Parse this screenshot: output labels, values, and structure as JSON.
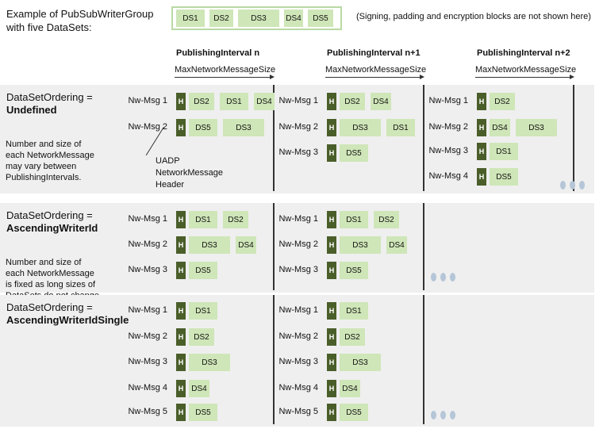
{
  "intro": {
    "line1": "Example of PubSubWriterGroup",
    "line2": "with five DataSets:"
  },
  "legend": {
    "datasets": [
      "DS1",
      "DS2",
      "DS3",
      "DS4",
      "DS5"
    ]
  },
  "note": "(Signing, padding and encryption blocks are not shown here)",
  "intervals": [
    {
      "title": "PublishingInterval n",
      "size_label": "MaxNetworkMessageSize"
    },
    {
      "title": "PublishingInterval n+1",
      "size_label": "MaxNetworkMessageSize"
    },
    {
      "title": "PublishingInterval n+2",
      "size_label": "MaxNetworkMessageSize"
    }
  ],
  "header_box_label": "H",
  "header_note": {
    "line1": "UADP",
    "line2": "NetworkMessage",
    "line3": "Header"
  },
  "sections": [
    {
      "label": "DataSetOrdering =",
      "value": "Undefined",
      "desc": [
        "Number  and size of",
        "each NetworkMessage",
        "may vary between",
        "PublishingIntervals."
      ],
      "intervals": [
        {
          "messages": [
            {
              "label": "Nw-Msg 1",
              "datasets": [
                "DS2",
                "DS1",
                "DS4"
              ]
            },
            {
              "label": "Nw-Msg 2",
              "datasets": [
                "DS5",
                "DS3"
              ]
            }
          ]
        },
        {
          "messages": [
            {
              "label": "Nw-Msg 1",
              "datasets": [
                "DS2",
                "DS4"
              ]
            },
            {
              "label": "Nw-Msg 2",
              "datasets": [
                "DS3",
                "DS1"
              ]
            },
            {
              "label": "Nw-Msg 3",
              "datasets": [
                "DS5"
              ]
            }
          ]
        },
        {
          "messages": [
            {
              "label": "Nw-Msg 1",
              "datasets": [
                "DS2"
              ]
            },
            {
              "label": "Nw-Msg 2",
              "datasets": [
                "DS4",
                "DS3"
              ]
            },
            {
              "label": "Nw-Msg 3",
              "datasets": [
                "DS1"
              ]
            },
            {
              "label": "Nw-Msg 4",
              "datasets": [
                "DS5"
              ]
            }
          ]
        }
      ]
    },
    {
      "label": "DataSetOrdering =",
      "value": "AscendingWriterId",
      "desc": [
        "Number  and size of",
        "each NetworkMessage",
        "is fixed as long sizes of",
        "DataSets do not change."
      ],
      "intervals": [
        {
          "messages": [
            {
              "label": "Nw-Msg 1",
              "datasets": [
                "DS1",
                "DS2"
              ]
            },
            {
              "label": "Nw-Msg 2",
              "datasets": [
                "DS3",
                "DS4"
              ]
            },
            {
              "label": "Nw-Msg 3",
              "datasets": [
                "DS5"
              ]
            }
          ]
        },
        {
          "messages": [
            {
              "label": "Nw-Msg 1",
              "datasets": [
                "DS1",
                "DS2"
              ]
            },
            {
              "label": "Nw-Msg 2",
              "datasets": [
                "DS3",
                "DS4"
              ]
            },
            {
              "label": "Nw-Msg 3",
              "datasets": [
                "DS5"
              ]
            }
          ]
        }
      ]
    },
    {
      "label": "DataSetOrdering =",
      "value": "AscendingWriterIdSingle",
      "desc": [],
      "intervals": [
        {
          "messages": [
            {
              "label": "Nw-Msg 1",
              "datasets": [
                "DS1"
              ]
            },
            {
              "label": "Nw-Msg 2",
              "datasets": [
                "DS2"
              ]
            },
            {
              "label": "Nw-Msg 3",
              "datasets": [
                "DS3"
              ]
            },
            {
              "label": "Nw-Msg 4",
              "datasets": [
                "DS4"
              ]
            },
            {
              "label": "Nw-Msg 5",
              "datasets": [
                "DS5"
              ]
            }
          ]
        },
        {
          "messages": [
            {
              "label": "Nw-Msg 1",
              "datasets": [
                "DS1"
              ]
            },
            {
              "label": "Nw-Msg 2",
              "datasets": [
                "DS2"
              ]
            },
            {
              "label": "Nw-Msg 3",
              "datasets": [
                "DS3"
              ]
            },
            {
              "label": "Nw-Msg 4",
              "datasets": [
                "DS4"
              ]
            },
            {
              "label": "Nw-Msg 5",
              "datasets": [
                "DS5"
              ]
            }
          ]
        }
      ]
    }
  ],
  "colors": {
    "dataset_fill": "#cfe6b8",
    "header_fill": "#4a5e2a",
    "band_fill": "#efefef",
    "legend_border": "#b9d9a3",
    "ellipsis": "#b5c6d8"
  }
}
